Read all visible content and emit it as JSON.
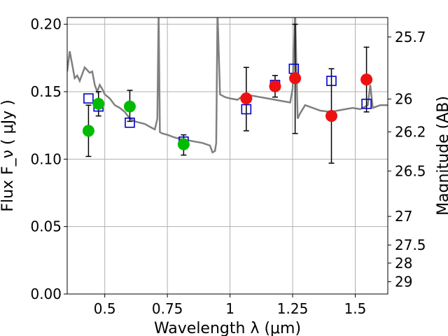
{
  "chart_data": {
    "type": "scatter",
    "title": "",
    "xlabel": "Wavelength  λ (μm)",
    "ylabel": "Flux  F_ν  ( μJy )",
    "y2label": "Magnitude (AB)",
    "xlim": [
      0.35,
      1.63
    ],
    "ylim": [
      0.0,
      0.205
    ],
    "grid": true,
    "x_ticks": [
      {
        "value": 0.5,
        "label": "0.5"
      },
      {
        "value": 0.75,
        "label": "0.75"
      },
      {
        "value": 1.0,
        "label": "1"
      },
      {
        "value": 1.25,
        "label": "1.25"
      },
      {
        "value": 1.5,
        "label": "1.5"
      }
    ],
    "y_ticks": [
      {
        "value": 0.0,
        "label": "0.00"
      },
      {
        "value": 0.05,
        "label": "0.05"
      },
      {
        "value": 0.1,
        "label": "0.10"
      },
      {
        "value": 0.15,
        "label": "0.15"
      },
      {
        "value": 0.2,
        "label": "0.20"
      }
    ],
    "y2_ticks": [
      {
        "value": 25.7,
        "label": "25.7"
      },
      {
        "value": 26.0,
        "label": "26"
      },
      {
        "value": 26.2,
        "label": "26.2"
      },
      {
        "value": 26.5,
        "label": "26.5"
      },
      {
        "value": 27.0,
        "label": "27"
      },
      {
        "value": 27.5,
        "label": "27.5"
      },
      {
        "value": 28.0,
        "label": "28"
      },
      {
        "value": 29.0,
        "label": "29"
      }
    ],
    "series": [
      {
        "kind": "line",
        "color": "#808080",
        "x": [
          0.35,
          0.36,
          0.37,
          0.38,
          0.39,
          0.4,
          0.41,
          0.42,
          0.43,
          0.44,
          0.45,
          0.46,
          0.47,
          0.48,
          0.49,
          0.5,
          0.52,
          0.54,
          0.56,
          0.58,
          0.6,
          0.62,
          0.64,
          0.66,
          0.68,
          0.7,
          0.71,
          0.715,
          0.72,
          0.73,
          0.75,
          0.78,
          0.8,
          0.83,
          0.86,
          0.89,
          0.92,
          0.93,
          0.94,
          0.945,
          0.95,
          0.96,
          0.98,
          1.0,
          1.03,
          1.06,
          1.09,
          1.12,
          1.15,
          1.18,
          1.21,
          1.24,
          1.25,
          1.26,
          1.27,
          1.28,
          1.3,
          1.33,
          1.36,
          1.4,
          1.43,
          1.46,
          1.49,
          1.52,
          1.55,
          1.56,
          1.57,
          1.6,
          1.63
        ],
        "y": [
          0.165,
          0.18,
          0.17,
          0.16,
          0.162,
          0.158,
          0.163,
          0.168,
          0.166,
          0.164,
          0.165,
          0.155,
          0.15,
          0.155,
          0.152,
          0.148,
          0.145,
          0.14,
          0.138,
          0.135,
          0.13,
          0.128,
          0.127,
          0.126,
          0.124,
          0.122,
          0.13,
          0.21,
          0.12,
          0.119,
          0.118,
          0.116,
          0.115,
          0.114,
          0.113,
          0.112,
          0.11,
          0.105,
          0.106,
          0.112,
          0.21,
          0.148,
          0.146,
          0.145,
          0.144,
          0.148,
          0.147,
          0.146,
          0.145,
          0.144,
          0.143,
          0.142,
          0.152,
          0.21,
          0.13,
          0.134,
          0.14,
          0.138,
          0.136,
          0.135,
          0.136,
          0.137,
          0.138,
          0.137,
          0.14,
          0.155,
          0.138,
          0.14,
          0.14
        ]
      },
      {
        "kind": "errorbar",
        "color": "#000000",
        "points": [
          {
            "x": 0.435,
            "y": 0.121,
            "lo": 0.102,
            "hi": 0.14
          },
          {
            "x": 0.475,
            "y": 0.141,
            "lo": 0.132,
            "hi": 0.15
          },
          {
            "x": 0.6,
            "y": 0.139,
            "lo": 0.128,
            "hi": 0.151
          },
          {
            "x": 0.815,
            "y": 0.111,
            "lo": 0.103,
            "hi": 0.118
          },
          {
            "x": 1.065,
            "y": 0.145,
            "lo": 0.121,
            "hi": 0.168
          },
          {
            "x": 1.18,
            "y": 0.154,
            "lo": 0.146,
            "hi": 0.162
          },
          {
            "x": 1.26,
            "y": 0.16,
            "lo": 0.119,
            "hi": 0.2
          },
          {
            "x": 1.405,
            "y": 0.132,
            "lo": 0.097,
            "hi": 0.167
          },
          {
            "x": 1.545,
            "y": 0.159,
            "lo": 0.135,
            "hi": 0.183
          }
        ]
      },
      {
        "kind": "square",
        "color": "#0000cc",
        "points": [
          {
            "x": 0.435,
            "y": 0.145
          },
          {
            "x": 0.475,
            "y": 0.139
          },
          {
            "x": 0.6,
            "y": 0.127
          },
          {
            "x": 0.815,
            "y": 0.113
          },
          {
            "x": 1.065,
            "y": 0.137
          },
          {
            "x": 1.18,
            "y": 0.155
          },
          {
            "x": 1.255,
            "y": 0.167
          },
          {
            "x": 1.405,
            "y": 0.158
          },
          {
            "x": 1.545,
            "y": 0.141
          }
        ]
      },
      {
        "kind": "circle",
        "color": "#00bb00",
        "points": [
          {
            "x": 0.435,
            "y": 0.121
          },
          {
            "x": 0.475,
            "y": 0.141
          },
          {
            "x": 0.6,
            "y": 0.139
          },
          {
            "x": 0.815,
            "y": 0.111
          }
        ]
      },
      {
        "kind": "circle",
        "color": "#ee1111",
        "points": [
          {
            "x": 1.065,
            "y": 0.145
          },
          {
            "x": 1.18,
            "y": 0.154
          },
          {
            "x": 1.26,
            "y": 0.16
          },
          {
            "x": 1.405,
            "y": 0.132
          },
          {
            "x": 1.545,
            "y": 0.159
          }
        ]
      }
    ]
  }
}
